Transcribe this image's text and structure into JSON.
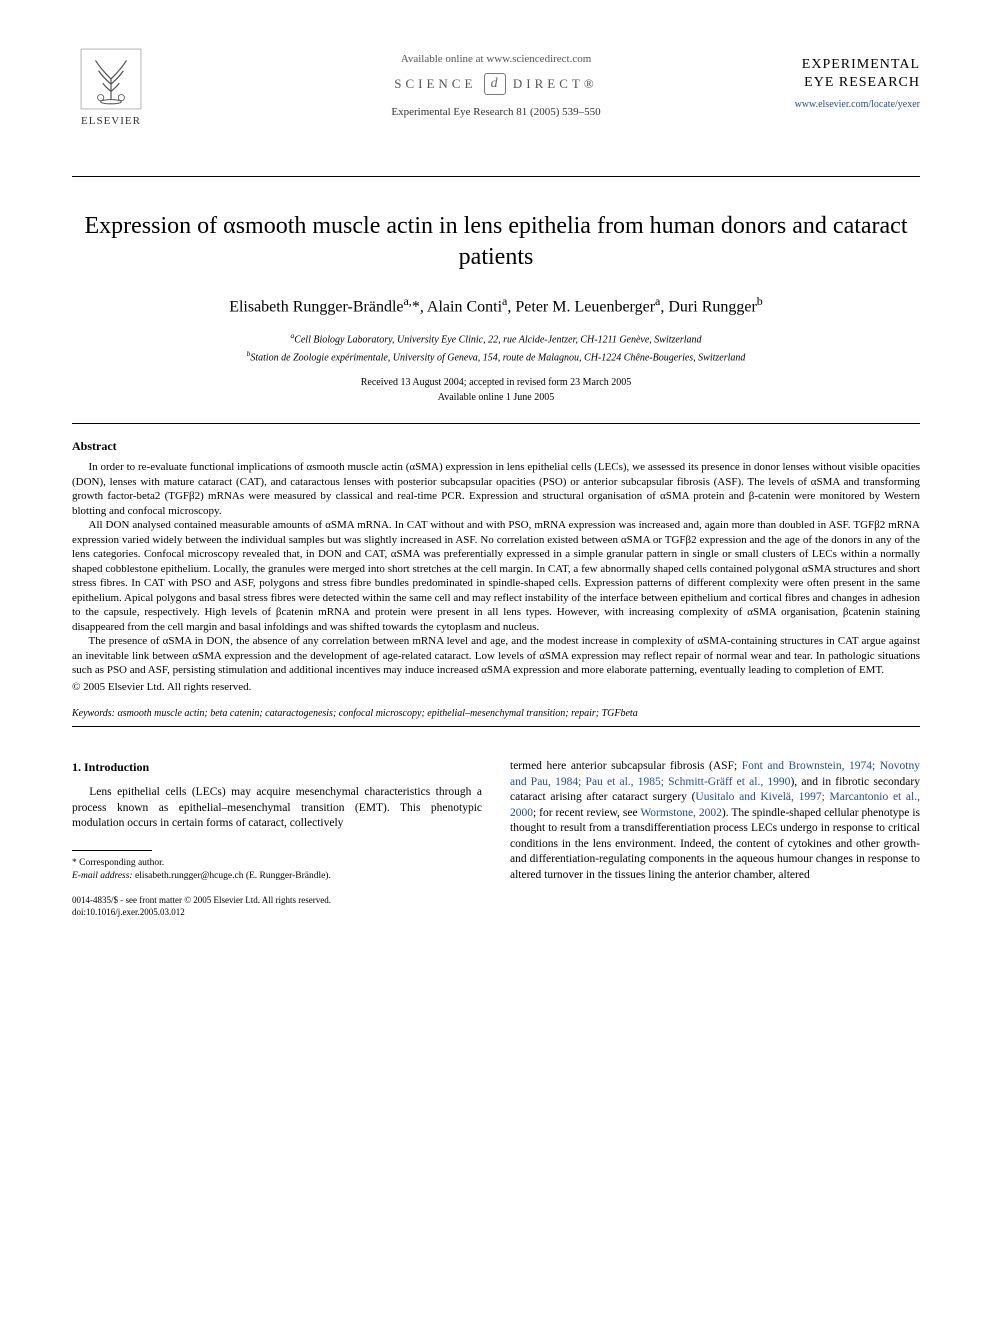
{
  "header": {
    "publisher_name": "ELSEVIER",
    "available_online": "Available online at www.sciencedirect.com",
    "science_direct_left": "SCIENCE",
    "science_direct_right": "DIRECT®",
    "journal_ref": "Experimental Eye Research 81 (2005) 539–550",
    "journal_name_line1": "EXPERIMENTAL",
    "journal_name_line2": "EYE RESEARCH",
    "journal_link": "www.elsevier.com/locate/yexer"
  },
  "title": "Expression of αsmooth muscle actin in lens epithelia from human donors and cataract patients",
  "authors_html": "Elisabeth Rungger-Brändle<sup>a,</sup>*, Alain Conti<sup>a</sup>, Peter M. Leuenberger<sup>a</sup>, Duri Rungger<sup>b</sup>",
  "affiliations": {
    "a": "Cell Biology Laboratory, University Eye Clinic, 22, rue Alcide-Jentzer, CH-1211 Genève, Switzerland",
    "b": "Station de Zoologie expérimentale, University of Geneva, 154, route de Malagnou, CH-1224 Chêne-Bougeries, Switzerland"
  },
  "dates": {
    "received": "Received 13 August 2004; accepted in revised form 23 March 2005",
    "online": "Available online 1 June 2005"
  },
  "abstract": {
    "heading": "Abstract",
    "p1": "In order to re-evaluate functional implications of αsmooth muscle actin (αSMA) expression in lens epithelial cells (LECs), we assessed its presence in donor lenses without visible opacities (DON), lenses with mature cataract (CAT), and cataractous lenses with posterior subcapsular opacities (PSO) or anterior subcapsular fibrosis (ASF). The levels of αSMA and transforming growth factor-beta2 (TGFβ2) mRNAs were measured by classical and real-time PCR. Expression and structural organisation of αSMA protein and β-catenin were monitored by Western blotting and confocal microscopy.",
    "p2": "All DON analysed contained measurable amounts of αSMA mRNA. In CAT without and with PSO, mRNA expression was increased and, again more than doubled in ASF. TGFβ2 mRNA expression varied widely between the individual samples but was slightly increased in ASF. No correlation existed between αSMA or TGFβ2 expression and the age of the donors in any of the lens categories. Confocal microscopy revealed that, in DON and CAT, αSMA was preferentially expressed in a simple granular pattern in single or small clusters of LECs within a normally shaped cobblestone epithelium. Locally, the granules were merged into short stretches at the cell margin. In CAT, a few abnormally shaped cells contained polygonal αSMA structures and short stress fibres. In CAT with PSO and ASF, polygons and stress fibre bundles predominated in spindle-shaped cells. Expression patterns of different complexity were often present in the same epithelium. Apical polygons and basal stress fibres were detected within the same cell and may reflect instability of the interface between epithelium and cortical fibres and changes in adhesion to the capsule, respectively. High levels of βcatenin mRNA and protein were present in all lens types. However, with increasing complexity of αSMA organisation, βcatenin staining disappeared from the cell margin and basal infoldings and was shifted towards the cytoplasm and nucleus.",
    "p3": "The presence of αSMA in DON, the absence of any correlation between mRNA level and age, and the modest increase in complexity of αSMA-containing structures in CAT argue against an inevitable link between αSMA expression and the development of age-related cataract. Low levels of αSMA expression may reflect repair of normal wear and tear. In pathologic situations such as PSO and ASF, persisting stimulation and additional incentives may induce increased αSMA expression and more elaborate patterning, eventually leading to completion of EMT.",
    "copyright": "© 2005 Elsevier Ltd. All rights reserved."
  },
  "keywords": {
    "label": "Keywords:",
    "text": "αsmooth muscle actin; beta catenin; cataractogenesis; confocal microscopy; epithelial–mesenchymal transition; repair; TGFbeta"
  },
  "section1": {
    "heading": "1. Introduction",
    "left_p1": "Lens epithelial cells (LECs) may acquire mesenchymal characteristics through a process known as epithelial–mesenchymal transition (EMT). This phenotypic modulation occurs in certain forms of cataract, collectively",
    "right_p1_pre": "termed here anterior subcapsular fibrosis (ASF; ",
    "right_ref1": "Font and Brownstein, 1974; Novotny and Pau, 1984; Pau et al., 1985; Schmitt-Gräff et al., 1990",
    "right_p1_mid1": "), and in fibrotic secondary cataract arising after cataract surgery (",
    "right_ref2": "Uusitalo and Kivelä, 1997; Marcantonio et al., 2000",
    "right_p1_mid2": "; for recent review, see ",
    "right_ref3": "Wormstone, 2002",
    "right_p1_post": "). The spindle-shaped cellular phenotype is thought to result from a transdifferentiation process LECs undergo in response to critical conditions in the lens environment. Indeed, the content of cytokines and other growth- and differentiation-regulating components in the aqueous humour changes in response to altered turnover in the tissues lining the anterior chamber, altered"
  },
  "footnote": {
    "corr_label": "* Corresponding author.",
    "email_label": "E-mail address:",
    "email": "elisabeth.rungger@hcuge.ch",
    "email_name": "(E. Rungger-Brändle)."
  },
  "footer": {
    "line1": "0014-4835/$ - see front matter © 2005 Elsevier Ltd. All rights reserved.",
    "line2": "doi:10.1016/j.exer.2005.03.012"
  },
  "colors": {
    "link": "#1a4f9c",
    "text": "#000000",
    "background": "#ffffff"
  }
}
